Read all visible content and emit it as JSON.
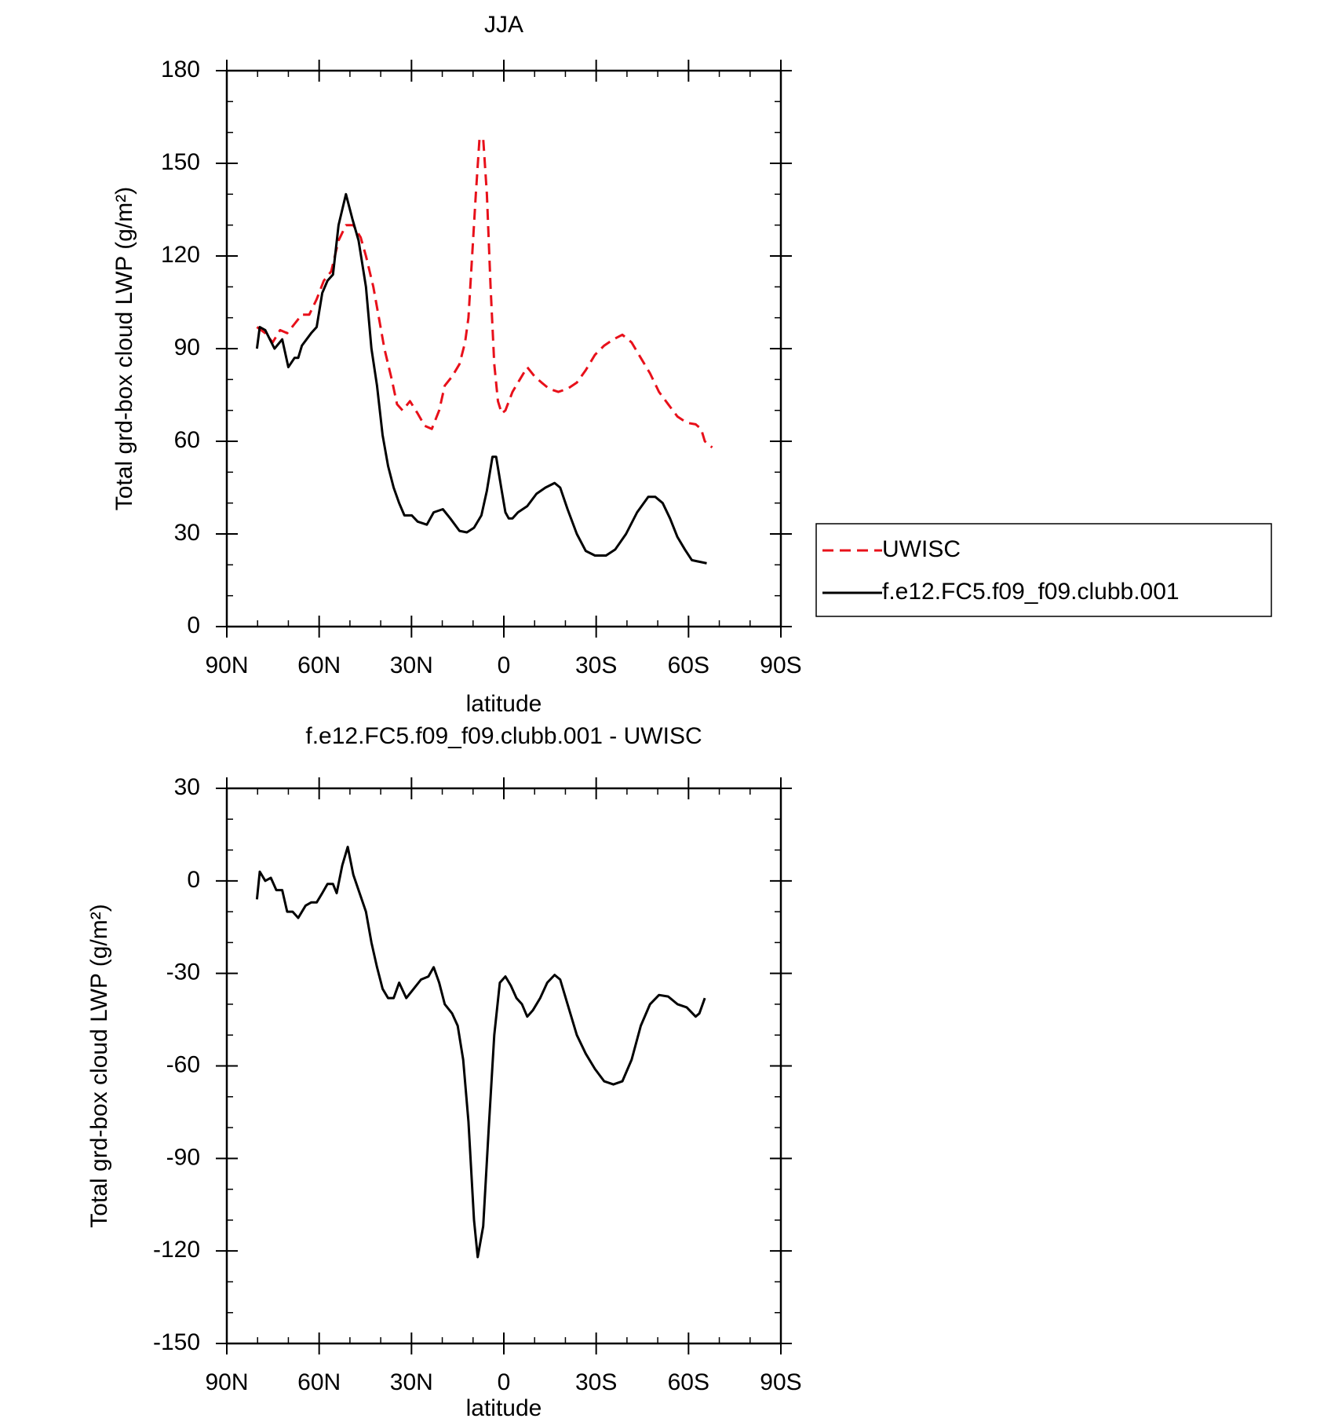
{
  "chart_data": [
    {
      "type": "line",
      "title": "JJA",
      "y_label": "Total grd-box cloud LWP (g/m²)",
      "x_label": "latitude",
      "xlim": [
        90,
        -90
      ],
      "xticks": [
        {
          "value": 90,
          "label": "90N"
        },
        {
          "value": 60,
          "label": "60N"
        },
        {
          "value": 30,
          "label": "30N"
        },
        0,
        {
          "value": -30,
          "label": "30S"
        },
        {
          "value": -60,
          "label": "60S"
        },
        {
          "value": -90,
          "label": "90S"
        }
      ],
      "minor_xticks": [
        80,
        70,
        50,
        40,
        20,
        10,
        -10,
        -20,
        -40,
        -50,
        -70,
        -80
      ],
      "ylim": [
        0,
        180
      ],
      "yticks": [
        0,
        30,
        60,
        90,
        120,
        150,
        180
      ],
      "minor_yticks": [
        10,
        20,
        40,
        50,
        70,
        80,
        100,
        110,
        130,
        140,
        160,
        170
      ],
      "legend": "right-outside",
      "series": [
        {
          "name": "UWISC",
          "color": "#e8101a",
          "dash": true,
          "x": [
            80.2,
            77.5,
            75.1,
            72.7,
            70.4,
            68.0,
            65.6,
            63.2,
            60.8,
            58.5,
            56.1,
            53.7,
            51.3,
            48.9,
            46.5,
            44.8,
            42.4,
            40.6,
            38.8,
            36.4,
            34.7,
            32.9,
            30.5,
            28.0,
            25.7,
            23.4,
            21.0,
            19.2,
            16.8,
            14.4,
            12.6,
            11.5,
            10.3,
            9.1,
            7.9,
            6.7,
            5.5,
            4.3,
            3.1,
            1.9,
            0.7,
            -0.5,
            -2.8,
            -5.2,
            -7.6,
            -10.0,
            -12.3,
            -14.7,
            -17.7,
            -20.7,
            -23.7,
            -26.6,
            -29.6,
            -32.6,
            -35.6,
            -38.5,
            -41.5,
            -44.5,
            -47.5,
            -50.4,
            -53.4,
            -56.4,
            -59.4,
            -62.3,
            -64.1,
            -65.3,
            -66.5,
            -67.7
          ],
          "values": [
            97,
            95,
            92,
            96,
            95,
            98,
            101,
            101,
            106,
            112,
            115,
            125,
            130,
            130,
            126,
            120,
            110,
            100,
            90,
            80,
            72,
            70,
            73,
            69,
            65,
            64,
            70,
            78,
            81,
            85,
            92,
            100,
            120,
            140,
            158,
            158,
            140,
            110,
            85,
            73,
            69,
            70,
            76,
            80,
            84,
            81,
            79,
            77,
            76,
            77,
            79,
            83,
            88,
            91,
            93,
            94.5,
            92,
            87,
            82,
            76,
            72,
            68,
            66,
            65.5,
            64,
            60,
            59,
            58
          ]
        },
        {
          "name": "f.e12.FC5.f09_f09.clubb.001",
          "color": "#000000",
          "dash": false,
          "x": [
            80.2,
            79.3,
            77.5,
            74.5,
            72.0,
            70.0,
            68.0,
            66.8,
            65.6,
            62.6,
            60.8,
            59.0,
            57.3,
            55.5,
            53.7,
            51.3,
            49.2,
            47.2,
            44.8,
            43.0,
            41.2,
            39.4,
            37.6,
            35.8,
            34.0,
            32.3,
            29.9,
            28.0,
            25.0,
            22.8,
            19.8,
            17.4,
            14.4,
            12.0,
            9.7,
            7.3,
            5.5,
            3.7,
            2.5,
            0.7,
            -0.5,
            -1.6,
            -2.8,
            -4.6,
            -7.6,
            -10.6,
            -13.5,
            -16.5,
            -18.3,
            -20.7,
            -23.7,
            -26.6,
            -29.6,
            -33.2,
            -36.2,
            -39.7,
            -43.3,
            -46.9,
            -49.2,
            -51.6,
            -54.0,
            -56.4,
            -58.8,
            -61.1,
            -63.5,
            -65.9
          ],
          "values": [
            90,
            97,
            96,
            90,
            93,
            84,
            87,
            87,
            91,
            95,
            97,
            108,
            112,
            114,
            130,
            140,
            132,
            125,
            110,
            90,
            78,
            62,
            52,
            45,
            40,
            36,
            36,
            34,
            33,
            37,
            38,
            35,
            31,
            30.5,
            32,
            36,
            44,
            55,
            55,
            44,
            37,
            35,
            35,
            37,
            39,
            43,
            45,
            46.5,
            45,
            38,
            30,
            24.5,
            23,
            23,
            25,
            30,
            37,
            42,
            42,
            40,
            35,
            29,
            25,
            21.5,
            21,
            20.5
          ]
        }
      ]
    },
    {
      "type": "line",
      "title": "f.e12.FC5.f09_f09.clubb.001 - UWISC",
      "y_label": "Total grd-box cloud LWP (g/m²)",
      "x_label": "latitude",
      "xlim": [
        90,
        -90
      ],
      "xticks": [
        {
          "value": 90,
          "label": "90N"
        },
        {
          "value": 60,
          "label": "60N"
        },
        {
          "value": 30,
          "label": "30N"
        },
        0,
        {
          "value": -30,
          "label": "30S"
        },
        {
          "value": -60,
          "label": "60S"
        },
        {
          "value": -90,
          "label": "90S"
        }
      ],
      "minor_xticks": [
        80,
        70,
        50,
        40,
        20,
        10,
        -10,
        -20,
        -40,
        -50,
        -70,
        -80
      ],
      "ylim": [
        -150,
        30
      ],
      "yticks": [
        -150,
        -120,
        -90,
        -60,
        -30,
        0,
        30
      ],
      "minor_yticks": [
        -140,
        -130,
        -110,
        -100,
        -80,
        -70,
        -50,
        -40,
        -20,
        -10,
        10,
        20
      ],
      "series": [
        {
          "color": "#000000",
          "dash": false,
          "x": [
            80.2,
            79.3,
            77.5,
            75.7,
            73.9,
            72.0,
            70.4,
            68.6,
            66.8,
            64.4,
            62.6,
            60.8,
            59.0,
            57.3,
            55.5,
            54.3,
            52.5,
            50.7,
            48.9,
            47.2,
            44.8,
            43.0,
            41.2,
            39.4,
            37.6,
            35.8,
            34.0,
            31.7,
            29.3,
            26.9,
            24.5,
            22.8,
            21.0,
            19.2,
            16.8,
            15.0,
            13.2,
            11.5,
            9.7,
            8.5,
            6.7,
            4.9,
            3.1,
            1.3,
            -0.5,
            -2.3,
            -4.1,
            -5.9,
            -7.6,
            -9.4,
            -11.8,
            -14.1,
            -16.5,
            -18.3,
            -20.7,
            -23.7,
            -26.6,
            -29.6,
            -32.6,
            -35.6,
            -38.5,
            -41.5,
            -44.5,
            -47.5,
            -50.4,
            -53.4,
            -56.4,
            -59.4,
            -62.3,
            -63.5,
            -65.3
          ],
          "values": [
            -6,
            3,
            0,
            1,
            -3,
            -3,
            -10,
            -10,
            -12,
            -8,
            -7,
            -7,
            -4,
            -1,
            -1,
            -4,
            5,
            11,
            2,
            -3,
            -10,
            -20,
            -28,
            -35,
            -38,
            -38,
            -33,
            -38,
            -35,
            -32,
            -31,
            -28,
            -33,
            -40,
            -43,
            -47,
            -58,
            -78,
            -110,
            -122,
            -112,
            -80,
            -50,
            -33,
            -31,
            -34,
            -38,
            -40,
            -44,
            -42,
            -38,
            -33,
            -30.5,
            -32,
            -40,
            -50,
            -56,
            -61,
            -65,
            -66,
            -65,
            -58,
            -47,
            -40,
            -37,
            -37.5,
            -40,
            -41,
            -44,
            -43,
            -38
          ]
        }
      ]
    }
  ]
}
